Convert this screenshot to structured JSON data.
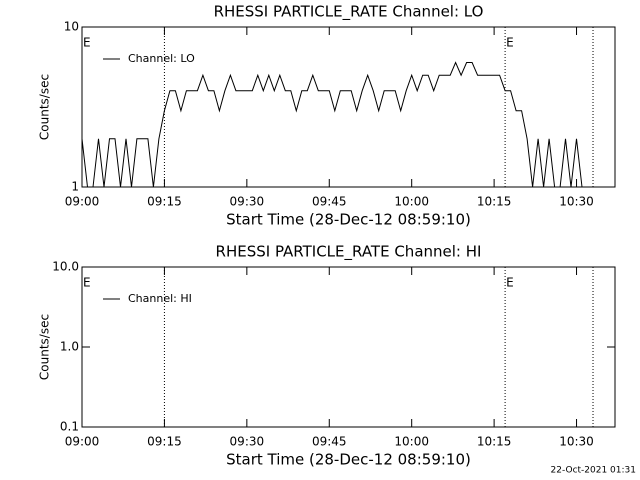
{
  "chart_data": [
    {
      "type": "line",
      "title": "RHESSI PARTICLE_RATE Channel: LO",
      "xlabel": "Start Time (28-Dec-12 08:59:10)",
      "ylabel": "Counts/sec",
      "x": [
        "09:00",
        "09:01",
        "09:02",
        "09:03",
        "09:04",
        "09:05",
        "09:06",
        "09:07",
        "09:08",
        "09:09",
        "09:10",
        "09:11",
        "09:12",
        "09:13",
        "09:14",
        "09:15",
        "09:16",
        "09:17",
        "09:18",
        "09:19",
        "09:20",
        "09:21",
        "09:22",
        "09:23",
        "09:24",
        "09:25",
        "09:26",
        "09:27",
        "09:28",
        "09:29",
        "09:30",
        "09:31",
        "09:32",
        "09:33",
        "09:34",
        "09:35",
        "09:36",
        "09:37",
        "09:38",
        "09:39",
        "09:40",
        "09:41",
        "09:42",
        "09:43",
        "09:44",
        "09:45",
        "09:46",
        "09:47",
        "09:48",
        "09:49",
        "09:50",
        "09:51",
        "09:52",
        "09:53",
        "09:54",
        "09:55",
        "09:56",
        "09:57",
        "09:58",
        "09:59",
        "10:00",
        "10:01",
        "10:02",
        "10:03",
        "10:04",
        "10:05",
        "10:06",
        "10:07",
        "10:08",
        "10:09",
        "10:10",
        "10:11",
        "10:12",
        "10:13",
        "10:14",
        "10:15",
        "10:16",
        "10:17",
        "10:18",
        "10:19",
        "10:20",
        "10:21",
        "10:22",
        "10:23",
        "10:24",
        "10:25",
        "10:26",
        "10:27",
        "10:28",
        "10:29",
        "10:30",
        "10:31"
      ],
      "series": [
        {
          "name": "Channel: LO",
          "color": "#000000",
          "values": [
            2,
            1,
            1,
            2,
            1,
            2,
            2,
            1,
            2,
            1,
            2,
            2,
            2,
            1,
            2,
            3,
            4,
            4,
            3,
            4,
            4,
            4,
            5,
            4,
            4,
            3,
            4,
            5,
            4,
            4,
            4,
            4,
            5,
            4,
            5,
            4,
            5,
            4,
            4,
            3,
            4,
            4,
            5,
            4,
            4,
            4,
            3,
            4,
            4,
            4,
            3,
            4,
            5,
            4,
            3,
            4,
            4,
            4,
            3,
            4,
            5,
            4,
            5,
            5,
            4,
            5,
            5,
            5,
            6,
            5,
            6,
            6,
            5,
            5,
            5,
            5,
            5,
            4,
            4,
            3,
            3,
            2,
            1,
            2,
            1,
            2,
            1,
            1,
            2,
            1,
            2,
            1
          ]
        }
      ],
      "xlim": [
        "09:00",
        "10:37"
      ],
      "xticks": [
        "09:00",
        "09:15",
        "09:30",
        "09:45",
        "10:00",
        "10:15",
        "10:30"
      ],
      "ylim": [
        1,
        10
      ],
      "yticks": [
        1,
        10
      ],
      "log_y": true,
      "vlines": [
        "09:15",
        "10:17",
        "10:33"
      ],
      "annotations": [
        {
          "text": "E",
          "x": "09:00"
        },
        {
          "text": "E",
          "x": "10:17"
        }
      ]
    },
    {
      "type": "line",
      "title": "RHESSI PARTICLE_RATE Channel: HI",
      "xlabel": "Start Time (28-Dec-12 08:59:10)",
      "ylabel": "Counts/sec",
      "x": [],
      "series": [
        {
          "name": "Channel: HI",
          "color": "#000000",
          "values": []
        }
      ],
      "xlim": [
        "09:00",
        "10:37"
      ],
      "xticks": [
        "09:00",
        "09:15",
        "09:30",
        "09:45",
        "10:00",
        "10:15",
        "10:30"
      ],
      "ylim": [
        0.1,
        10
      ],
      "yticks": [
        {
          "value": 0.1,
          "label": "0.1"
        },
        {
          "value": 1,
          "label": "1.0"
        },
        {
          "value": 10,
          "label": "10.0"
        }
      ],
      "log_y": true,
      "vlines": [
        "09:15",
        "10:17",
        "10:33"
      ],
      "annotations": [
        {
          "text": "E",
          "x": "09:00"
        },
        {
          "text": "E",
          "x": "10:17"
        }
      ]
    }
  ],
  "footer": "22-Oct-2021 01:31"
}
